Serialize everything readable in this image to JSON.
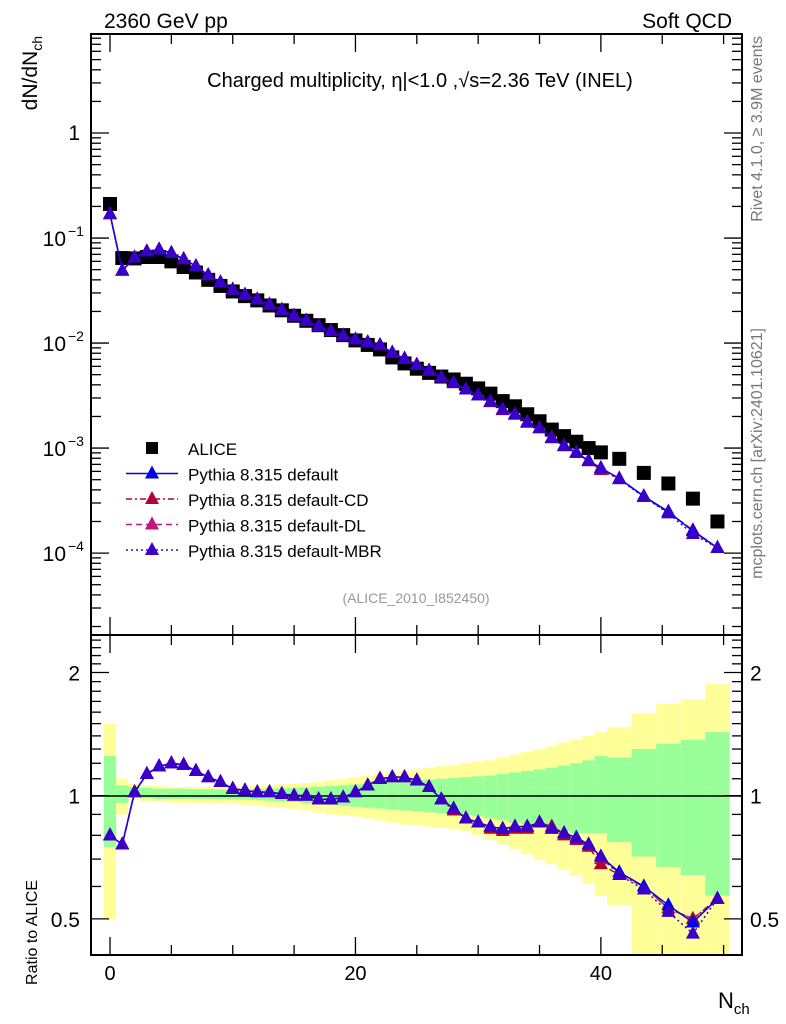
{
  "header": {
    "left": "2360 GeV pp",
    "right": "Soft QCD"
  },
  "side_labels": {
    "rivet": "Rivet 4.1.0, ≥ 3.9M events",
    "mcplots": "mcplots.cern.ch [arXiv:2401.10621]"
  },
  "chart_data": [
    {
      "type": "line",
      "panel": "main",
      "title": "Charged multiplicity, η|<1.0 ,√s=2.36 TeV (INEL)",
      "ylabel": "dN/dN_ch",
      "xlabel": "N_ch",
      "yscale": "log",
      "xlim": [
        -1.55,
        51.5
      ],
      "ylim": [
        1.66e-05,
        8.77
      ],
      "yticks": [
        {
          "value": 1,
          "label": "1"
        },
        {
          "value": 0.1,
          "label": "10^-1"
        },
        {
          "value": 0.01,
          "label": "10^-2"
        },
        {
          "value": 0.001,
          "label": "10^-3"
        },
        {
          "value": 0.0001,
          "label": "10^-4"
        }
      ],
      "reference_label": "(ALICE_2010_I852450)",
      "legend_position": "lower-left",
      "x": [
        0,
        1,
        2,
        3,
        4,
        5,
        6,
        7,
        8,
        9,
        10,
        11,
        12,
        13,
        14,
        15,
        16,
        17,
        18,
        19,
        20,
        21,
        22,
        23,
        24,
        25,
        26,
        27,
        28,
        29,
        30,
        31,
        32,
        33,
        34,
        35,
        36,
        37,
        38,
        39,
        40,
        41.5,
        43.5,
        45.5,
        47.5,
        49.5
      ],
      "series": [
        {
          "name": "ALICE",
          "style": "square-marker",
          "color": "#000000",
          "values": [
            0.211,
            0.0645,
            0.064,
            0.066,
            0.066,
            0.06,
            0.053,
            0.047,
            0.04,
            0.035,
            0.031,
            0.028,
            0.0255,
            0.0228,
            0.0205,
            0.0182,
            0.0163,
            0.0148,
            0.0133,
            0.0119,
            0.0106,
            0.0096,
            0.0087,
            0.0073,
            0.0064,
            0.0057,
            0.0052,
            0.0048,
            0.0045,
            0.0041,
            0.0037,
            0.0033,
            0.0028,
            0.0025,
            0.0021,
            0.0018,
            0.0015,
            0.0013,
            0.00115,
            0.001,
            0.00091,
            0.00079,
            0.00058,
            0.00046,
            0.00033,
            0.0002
          ]
        },
        {
          "name": "Pythia 8.315 default",
          "style": "solid",
          "color": "#0000ee",
          "ratio": [
            0.8,
            0.76,
            1.02,
            1.13,
            1.18,
            1.2,
            1.19,
            1.15,
            1.11,
            1.08,
            1.04,
            1.03,
            1.02,
            1.02,
            1.01,
            1.0,
            1.0,
            0.98,
            0.98,
            0.99,
            1.02,
            1.06,
            1.1,
            1.11,
            1.11,
            1.09,
            1.05,
            0.98,
            0.93,
            0.88,
            0.86,
            0.84,
            0.83,
            0.84,
            0.84,
            0.86,
            0.83,
            0.81,
            0.79,
            0.76,
            0.71,
            0.65,
            0.6,
            0.54,
            0.49,
            0.56
          ]
        },
        {
          "name": "Pythia 8.315 default-CD",
          "style": "dash-dot",
          "color": "#b0003a",
          "ratio": [
            0.8,
            0.76,
            1.02,
            1.13,
            1.18,
            1.2,
            1.19,
            1.15,
            1.11,
            1.08,
            1.04,
            1.03,
            1.02,
            1.02,
            1.01,
            1.0,
            1.0,
            0.98,
            0.98,
            0.99,
            1.02,
            1.06,
            1.1,
            1.11,
            1.11,
            1.09,
            1.05,
            0.98,
            0.92,
            0.88,
            0.86,
            0.83,
            0.82,
            0.83,
            0.83,
            0.86,
            0.84,
            0.8,
            0.78,
            0.75,
            0.68,
            0.64,
            0.6,
            0.53,
            0.5,
            0.56
          ]
        },
        {
          "name": "Pythia 8.315 default-DL",
          "style": "dashed",
          "color": "#c0157a",
          "ratio": [
            0.8,
            0.76,
            1.02,
            1.13,
            1.18,
            1.2,
            1.19,
            1.15,
            1.11,
            1.08,
            1.04,
            1.03,
            1.02,
            1.02,
            1.01,
            1.0,
            1.0,
            0.98,
            0.98,
            0.99,
            1.02,
            1.06,
            1.1,
            1.11,
            1.11,
            1.09,
            1.05,
            0.98,
            0.93,
            0.88,
            0.86,
            0.84,
            0.83,
            0.84,
            0.84,
            0.86,
            0.84,
            0.81,
            0.78,
            0.76,
            0.7,
            0.65,
            0.6,
            0.53,
            0.5,
            0.56
          ]
        },
        {
          "name": "Pythia 8.315 default-MBR",
          "style": "dotted",
          "color": "#3a00c8",
          "ratio": [
            0.8,
            0.76,
            1.02,
            1.13,
            1.18,
            1.2,
            1.19,
            1.15,
            1.11,
            1.08,
            1.04,
            1.03,
            1.02,
            1.02,
            1.01,
            1.0,
            1.0,
            0.98,
            0.98,
            0.99,
            1.02,
            1.06,
            1.1,
            1.11,
            1.11,
            1.09,
            1.05,
            0.98,
            0.93,
            0.88,
            0.86,
            0.84,
            0.83,
            0.84,
            0.84,
            0.86,
            0.83,
            0.81,
            0.79,
            0.76,
            0.71,
            0.64,
            0.59,
            0.52,
            0.46,
            0.56
          ]
        }
      ]
    },
    {
      "type": "line",
      "panel": "ratio",
      "ylabel": "Ratio to ALICE",
      "xlabel": "N_ch",
      "yscale": "log",
      "xlim": [
        -1.55,
        51.5
      ],
      "ylim": [
        0.408,
        2.47
      ],
      "yticks": [
        {
          "value": 2,
          "label": "2"
        },
        {
          "value": 1,
          "label": "1"
        },
        {
          "value": 0.5,
          "label": "0.5"
        }
      ],
      "xticks": [
        {
          "value": 0,
          "label": "0"
        },
        {
          "value": 20,
          "label": "20"
        },
        {
          "value": 40,
          "label": "40"
        }
      ],
      "bands": {
        "bin_edges": [
          -0.5,
          0.5,
          1.5,
          2.5,
          3.5,
          4.5,
          5.5,
          6.5,
          7.5,
          8.5,
          9.5,
          10.5,
          11.5,
          12.5,
          13.5,
          14.5,
          15.5,
          16.5,
          17.5,
          18.5,
          19.5,
          20.5,
          21.5,
          22.5,
          23.5,
          24.5,
          25.5,
          26.5,
          27.5,
          28.5,
          29.5,
          30.5,
          31.5,
          32.5,
          33.5,
          34.5,
          35.5,
          36.5,
          37.5,
          38.5,
          39.5,
          40.5,
          42.5,
          44.5,
          46.5,
          48.5,
          50.5
        ],
        "stat_color": "#99ff99",
        "total_color": "#ffff99",
        "stat_up": [
          1.25,
          1.06,
          1.05,
          1.045,
          1.04,
          1.04,
          1.04,
          1.038,
          1.037,
          1.036,
          1.035,
          1.036,
          1.038,
          1.04,
          1.042,
          1.045,
          1.048,
          1.052,
          1.056,
          1.06,
          1.065,
          1.07,
          1.075,
          1.08,
          1.085,
          1.09,
          1.095,
          1.1,
          1.105,
          1.11,
          1.115,
          1.12,
          1.13,
          1.14,
          1.15,
          1.16,
          1.17,
          1.185,
          1.2,
          1.22,
          1.25,
          1.24,
          1.3,
          1.34,
          1.37,
          1.43
        ],
        "stat_down": [
          0.75,
          0.96,
          0.99,
          0.985,
          0.982,
          0.982,
          0.982,
          0.982,
          0.982,
          0.981,
          0.98,
          0.978,
          0.975,
          0.972,
          0.968,
          0.965,
          0.96,
          0.955,
          0.95,
          0.945,
          0.94,
          0.935,
          0.93,
          0.925,
          0.92,
          0.915,
          0.91,
          0.905,
          0.9,
          0.895,
          0.89,
          0.88,
          0.87,
          0.86,
          0.85,
          0.84,
          0.83,
          0.82,
          0.81,
          0.81,
          0.81,
          0.77,
          0.71,
          0.67,
          0.64,
          0.57
        ],
        "total_up": [
          1.5,
          1.1,
          1.07,
          1.06,
          1.055,
          1.052,
          1.05,
          1.05,
          1.05,
          1.05,
          1.05,
          1.053,
          1.056,
          1.06,
          1.065,
          1.07,
          1.075,
          1.08,
          1.09,
          1.1,
          1.11,
          1.12,
          1.13,
          1.14,
          1.15,
          1.16,
          1.17,
          1.18,
          1.19,
          1.2,
          1.21,
          1.22,
          1.24,
          1.26,
          1.28,
          1.3,
          1.32,
          1.35,
          1.37,
          1.4,
          1.43,
          1.47,
          1.59,
          1.68,
          1.72,
          1.88
        ],
        "total_down": [
          0.5,
          0.9,
          0.98,
          0.97,
          0.965,
          0.962,
          0.96,
          0.96,
          0.96,
          0.958,
          0.955,
          0.95,
          0.945,
          0.94,
          0.935,
          0.93,
          0.92,
          0.91,
          0.9,
          0.895,
          0.89,
          0.88,
          0.87,
          0.86,
          0.85,
          0.845,
          0.84,
          0.835,
          0.83,
          0.82,
          0.8,
          0.78,
          0.76,
          0.74,
          0.72,
          0.7,
          0.68,
          0.66,
          0.64,
          0.61,
          0.57,
          0.54,
          0.4,
          0.4,
          0.4,
          0.4
        ]
      }
    }
  ]
}
